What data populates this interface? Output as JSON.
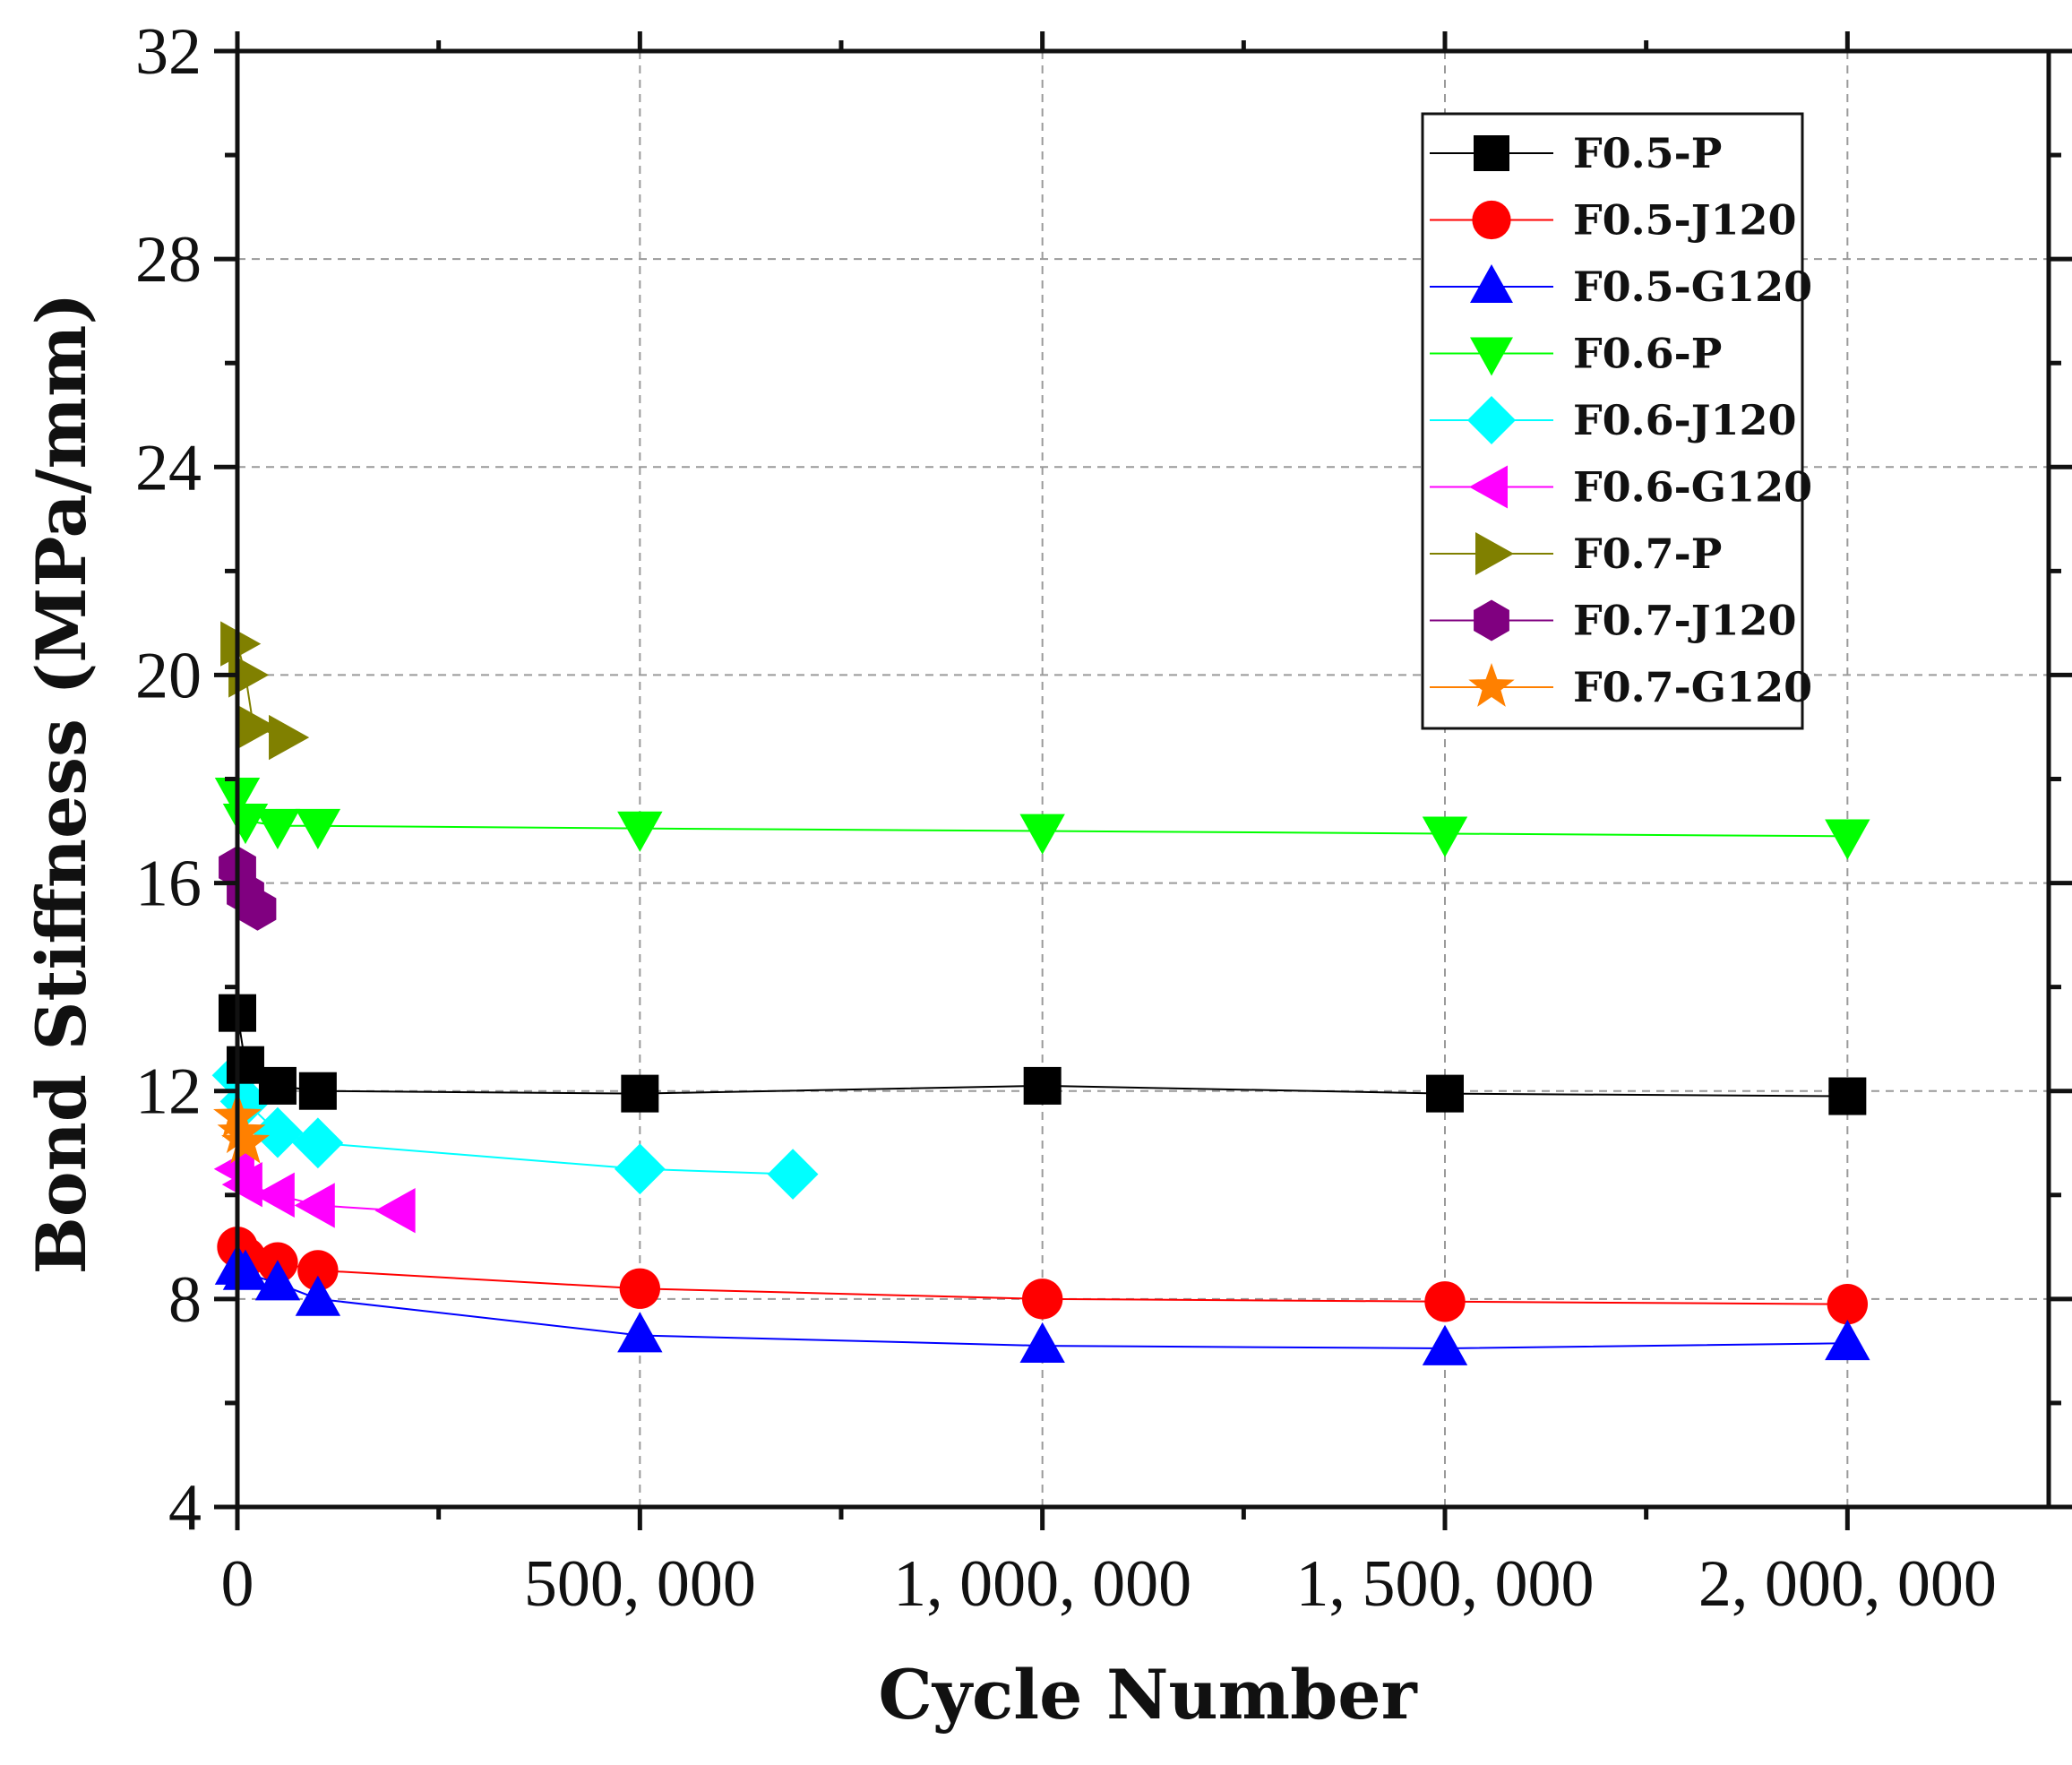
{
  "chart_data": {
    "type": "scatter",
    "xlabel": "Cycle Number",
    "ylabel": "Bond Stiffness (MPa/mm)",
    "xlim": [
      0,
      2250000
    ],
    "ylim": [
      4,
      32
    ],
    "x_ticks": [
      0,
      500000,
      1000000,
      1500000,
      2000000
    ],
    "x_tick_labels": [
      "0",
      "500, 000",
      "1, 000, 000",
      "1, 500, 000",
      "2, 000, 000"
    ],
    "y_ticks": [
      4,
      8,
      12,
      16,
      20,
      24,
      28,
      32
    ],
    "y_tick_labels": [
      "4",
      "8",
      "12",
      "16",
      "20",
      "24",
      "28",
      "32"
    ],
    "grid": true,
    "legend_position": "top-right",
    "series": [
      {
        "name": "F0.5-P",
        "color": "#000000",
        "marker": "square",
        "x": [
          1,
          10000,
          50000,
          100000,
          500000,
          1000000,
          1500000,
          2000000
        ],
        "y": [
          13.5,
          12.5,
          12.1,
          12.0,
          11.95,
          12.1,
          11.95,
          11.9
        ]
      },
      {
        "name": "F0.5-J120",
        "color": "#ff0000",
        "marker": "circle",
        "x": [
          1,
          10000,
          50000,
          100000,
          500000,
          1000000,
          1500000,
          2000000
        ],
        "y": [
          9.0,
          8.8,
          8.7,
          8.55,
          8.2,
          8.0,
          7.95,
          7.9
        ]
      },
      {
        "name": "F0.5-G120",
        "color": "#0000ff",
        "marker": "triangle-up",
        "x": [
          1,
          10000,
          50000,
          100000,
          500000,
          1000000,
          1500000,
          2000000
        ],
        "y": [
          8.6,
          8.5,
          8.3,
          8.0,
          7.3,
          7.1,
          7.05,
          7.15
        ]
      },
      {
        "name": "F0.6-P",
        "color": "#00ff00",
        "marker": "triangle-down",
        "x": [
          1,
          10000,
          50000,
          100000,
          500000,
          1000000,
          1500000,
          2000000
        ],
        "y": [
          17.7,
          17.2,
          17.1,
          17.1,
          17.05,
          17.0,
          16.95,
          16.9
        ]
      },
      {
        "name": "F0.6-J120",
        "color": "#00ffff",
        "marker": "diamond",
        "x": [
          1,
          10000,
          50000,
          100000,
          500000,
          690000
        ],
        "y": [
          12.3,
          11.8,
          11.2,
          11.0,
          10.5,
          10.4
        ]
      },
      {
        "name": "F0.6-G120",
        "color": "#ff00ff",
        "marker": "triangle-left",
        "x": [
          1,
          10000,
          50000,
          100000,
          200000
        ],
        "y": [
          10.5,
          10.2,
          10.0,
          9.8,
          9.7
        ]
      },
      {
        "name": "F0.7-P",
        "color": "#808000",
        "marker": "triangle-right",
        "x": [
          1,
          10000,
          20000,
          60000
        ],
        "y": [
          20.6,
          20.0,
          19.0,
          18.8
        ]
      },
      {
        "name": "F0.7-J120",
        "color": "#800080",
        "marker": "hexagon",
        "x": [
          1,
          10000,
          25000
        ],
        "y": [
          16.3,
          15.8,
          15.5
        ]
      },
      {
        "name": "F0.7-G120",
        "color": "#ff8000",
        "marker": "star",
        "x": [
          1,
          5000,
          10000
        ],
        "y": [
          11.5,
          11.2,
          11.0
        ]
      }
    ]
  }
}
